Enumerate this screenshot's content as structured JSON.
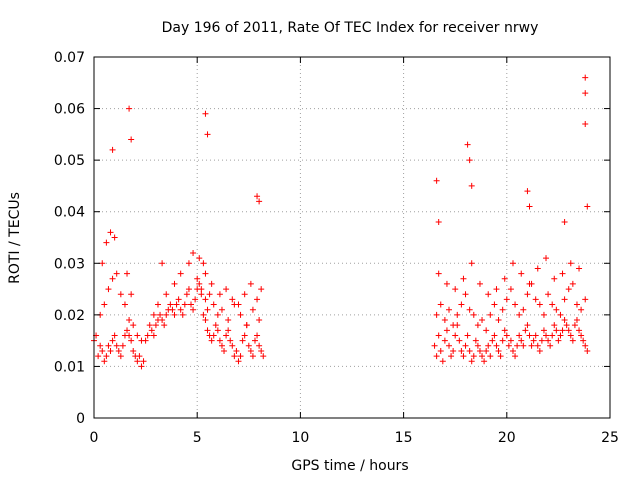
{
  "chart_data": {
    "type": "scatter",
    "title": "Day 196 of 2011, Rate Of TEC Index for receiver nrwy",
    "xlabel": "GPS time / hours",
    "ylabel": "ROTI / TECUs",
    "xlim": [
      0,
      25
    ],
    "ylim": [
      0,
      0.07
    ],
    "xticks": [
      "0",
      "5",
      "10",
      "15",
      "20",
      "25"
    ],
    "yticks": [
      "0",
      "0.01",
      "0.02",
      "0.03",
      "0.04",
      "0.05",
      "0.06",
      "0.07"
    ],
    "grid": true,
    "marker": "plus",
    "color": "#ff0000",
    "series": [
      {
        "name": "nrwy",
        "x": [
          0.0,
          0.1,
          0.2,
          0.3,
          0.4,
          0.5,
          0.6,
          0.7,
          0.8,
          0.9,
          1.0,
          1.1,
          1.2,
          1.3,
          1.4,
          1.5,
          1.6,
          1.7,
          1.8,
          1.9,
          2.0,
          2.1,
          2.2,
          2.3,
          2.4,
          2.5,
          2.6,
          2.7,
          2.8,
          2.9,
          3.0,
          3.1,
          3.2,
          3.3,
          3.4,
          3.5,
          3.6,
          3.7,
          3.8,
          3.9,
          4.0,
          4.1,
          4.2,
          4.3,
          4.4,
          4.5,
          4.6,
          4.7,
          4.8,
          4.9,
          5.0,
          5.1,
          5.2,
          5.3,
          5.4,
          5.5,
          5.6,
          5.7,
          5.8,
          5.9,
          6.0,
          6.1,
          6.2,
          6.3,
          6.4,
          6.5,
          6.6,
          6.7,
          6.8,
          6.9,
          7.0,
          7.1,
          7.2,
          7.3,
          7.4,
          7.5,
          7.6,
          7.7,
          7.8,
          7.9,
          8.0,
          8.1,
          8.2,
          0.3,
          0.5,
          0.7,
          0.9,
          1.1,
          1.3,
          1.5,
          1.7,
          1.9,
          2.1,
          2.3,
          2.9,
          3.1,
          3.5,
          3.9,
          4.2,
          4.6,
          5.0,
          5.2,
          5.4,
          5.5,
          5.6,
          5.8,
          6.0,
          6.2,
          6.5,
          6.8,
          7.1,
          7.4,
          7.7,
          8.0,
          0.4,
          0.6,
          0.8,
          1.0,
          1.6,
          1.8,
          3.3,
          4.8,
          5.1,
          5.3,
          5.4,
          5.7,
          6.1,
          6.4,
          6.7,
          7.0,
          7.3,
          7.6,
          7.9,
          8.1,
          1.7,
          1.8,
          0.9,
          5.4,
          5.5,
          7.9,
          8.0,
          16.5,
          16.6,
          16.7,
          16.8,
          16.9,
          17.0,
          17.1,
          17.2,
          17.3,
          17.4,
          17.5,
          17.6,
          17.7,
          17.8,
          17.9,
          18.0,
          18.1,
          18.2,
          18.3,
          18.4,
          18.5,
          18.6,
          18.7,
          18.8,
          18.9,
          19.0,
          19.1,
          19.2,
          19.3,
          19.4,
          19.5,
          19.6,
          19.7,
          19.8,
          19.9,
          20.0,
          20.1,
          20.2,
          20.3,
          20.4,
          20.5,
          20.6,
          20.7,
          20.8,
          20.9,
          21.0,
          21.1,
          21.2,
          21.3,
          21.4,
          21.5,
          21.6,
          21.7,
          21.8,
          21.9,
          22.0,
          22.1,
          22.2,
          22.3,
          22.4,
          22.5,
          22.6,
          22.7,
          22.8,
          22.9,
          23.0,
          23.1,
          23.2,
          23.3,
          23.4,
          23.5,
          23.6,
          23.7,
          23.8,
          23.9,
          16.6,
          16.8,
          17.0,
          17.2,
          17.4,
          17.6,
          17.8,
          18.0,
          18.2,
          18.4,
          18.6,
          18.8,
          19.0,
          19.2,
          19.4,
          19.6,
          19.8,
          20.0,
          20.2,
          20.4,
          20.6,
          20.8,
          21.0,
          21.2,
          21.4,
          21.6,
          21.8,
          22.0,
          22.2,
          22.4,
          22.6,
          22.8,
          23.0,
          23.2,
          23.4,
          23.6,
          23.8,
          16.7,
          17.1,
          17.5,
          17.9,
          18.3,
          18.7,
          19.1,
          19.5,
          19.9,
          20.3,
          20.7,
          21.1,
          21.5,
          21.9,
          22.3,
          22.7,
          23.1,
          23.5,
          16.6,
          16.7,
          18.1,
          18.2,
          18.3,
          21.0,
          21.1,
          22.8,
          23.8,
          23.8,
          23.8,
          23.9
        ],
        "y": [
          0.015,
          0.016,
          0.012,
          0.014,
          0.013,
          0.011,
          0.012,
          0.014,
          0.013,
          0.015,
          0.016,
          0.014,
          0.013,
          0.012,
          0.014,
          0.016,
          0.017,
          0.016,
          0.015,
          0.013,
          0.012,
          0.011,
          0.012,
          0.01,
          0.011,
          0.015,
          0.016,
          0.018,
          0.017,
          0.016,
          0.018,
          0.019,
          0.02,
          0.019,
          0.018,
          0.02,
          0.021,
          0.022,
          0.021,
          0.02,
          0.022,
          0.023,
          0.021,
          0.02,
          0.022,
          0.024,
          0.025,
          0.022,
          0.021,
          0.023,
          0.025,
          0.026,
          0.024,
          0.02,
          0.019,
          0.017,
          0.016,
          0.015,
          0.016,
          0.018,
          0.017,
          0.015,
          0.014,
          0.013,
          0.016,
          0.017,
          0.015,
          0.014,
          0.012,
          0.013,
          0.011,
          0.012,
          0.015,
          0.016,
          0.018,
          0.014,
          0.013,
          0.012,
          0.015,
          0.016,
          0.014,
          0.013,
          0.012,
          0.02,
          0.022,
          0.025,
          0.027,
          0.028,
          0.024,
          0.022,
          0.019,
          0.018,
          0.016,
          0.015,
          0.02,
          0.022,
          0.024,
          0.026,
          0.028,
          0.03,
          0.027,
          0.025,
          0.023,
          0.021,
          0.024,
          0.022,
          0.02,
          0.021,
          0.019,
          0.022,
          0.02,
          0.018,
          0.021,
          0.019,
          0.03,
          0.034,
          0.036,
          0.035,
          0.028,
          0.024,
          0.03,
          0.032,
          0.031,
          0.03,
          0.028,
          0.026,
          0.024,
          0.025,
          0.023,
          0.022,
          0.024,
          0.026,
          0.023,
          0.025,
          0.06,
          0.054,
          0.052,
          0.059,
          0.055,
          0.043,
          0.042,
          0.014,
          0.012,
          0.016,
          0.013,
          0.011,
          0.015,
          0.017,
          0.014,
          0.012,
          0.013,
          0.016,
          0.018,
          0.015,
          0.013,
          0.012,
          0.014,
          0.016,
          0.013,
          0.011,
          0.012,
          0.015,
          0.014,
          0.013,
          0.012,
          0.011,
          0.013,
          0.014,
          0.012,
          0.015,
          0.016,
          0.014,
          0.013,
          0.012,
          0.015,
          0.017,
          0.016,
          0.014,
          0.015,
          0.013,
          0.012,
          0.014,
          0.016,
          0.015,
          0.014,
          0.017,
          0.018,
          0.016,
          0.014,
          0.015,
          0.016,
          0.014,
          0.013,
          0.015,
          0.017,
          0.016,
          0.015,
          0.014,
          0.016,
          0.018,
          0.017,
          0.015,
          0.016,
          0.017,
          0.019,
          0.018,
          0.017,
          0.016,
          0.015,
          0.018,
          0.019,
          0.017,
          0.016,
          0.015,
          0.014,
          0.013,
          0.02,
          0.022,
          0.019,
          0.021,
          0.018,
          0.02,
          0.022,
          0.024,
          0.021,
          0.02,
          0.018,
          0.019,
          0.017,
          0.02,
          0.022,
          0.019,
          0.021,
          0.023,
          0.025,
          0.022,
          0.02,
          0.021,
          0.024,
          0.026,
          0.023,
          0.022,
          0.02,
          0.024,
          0.022,
          0.021,
          0.02,
          0.023,
          0.025,
          0.026,
          0.022,
          0.021,
          0.023,
          0.028,
          0.026,
          0.025,
          0.027,
          0.03,
          0.026,
          0.024,
          0.025,
          0.027,
          0.03,
          0.028,
          0.026,
          0.029,
          0.031,
          0.027,
          0.028,
          0.03,
          0.029,
          0.046,
          0.038,
          0.053,
          0.05,
          0.045,
          0.044,
          0.041,
          0.038,
          0.066,
          0.063,
          0.057,
          0.041
        ]
      }
    ]
  }
}
